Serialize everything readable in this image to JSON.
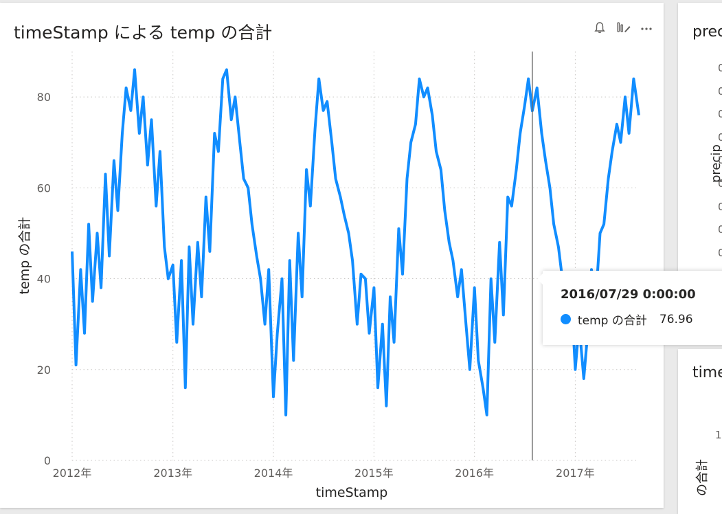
{
  "visual": {
    "title": "timeStamp による temp の合計",
    "icons": [
      "bell-icon",
      "focus-mode-icon",
      "more-options-icon"
    ]
  },
  "tooltip": {
    "title": "2016/07/29 0:00:00",
    "series_label": "temp の合計",
    "value": "76.96"
  },
  "right_panel": {
    "top_title": "preci",
    "top_axis_label": "precip",
    "top_ticks": [
      "0",
      "0",
      "0",
      "0",
      "0",
      "0",
      "0",
      "0",
      "0"
    ],
    "bottom_title": "time",
    "bottom_tick": "1",
    "bottom_axis_label": "の合計"
  },
  "colors": {
    "series": "#118dff",
    "crosshair": "#666666",
    "grid": "#c8c6c4"
  },
  "chart_data": {
    "type": "line",
    "title": "timeStamp による temp の合計",
    "xlabel": "timeStamp",
    "ylabel": "temp の合計",
    "x_range": [
      "2012-01-01",
      "2017-08-20"
    ],
    "ylim": [
      0,
      90
    ],
    "y_ticks": [
      0,
      20,
      40,
      60,
      80
    ],
    "x_ticks": [
      "2012年",
      "2013年",
      "2014年",
      "2015年",
      "2016年",
      "2017年"
    ],
    "grid": true,
    "highlight_x": "2016-07-29",
    "series": [
      {
        "name": "temp の合計",
        "color": "#118dff",
        "x": [
          "2012-01-01",
          "2012-01-15",
          "2012-02-01",
          "2012-02-15",
          "2012-03-01",
          "2012-03-15",
          "2012-04-01",
          "2012-04-15",
          "2012-05-01",
          "2012-05-15",
          "2012-06-01",
          "2012-06-15",
          "2012-07-01",
          "2012-07-15",
          "2012-08-01",
          "2012-08-15",
          "2012-09-01",
          "2012-09-15",
          "2012-10-01",
          "2012-10-15",
          "2012-11-01",
          "2012-11-15",
          "2012-12-01",
          "2012-12-15",
          "2013-01-01",
          "2013-01-15",
          "2013-02-01",
          "2013-02-15",
          "2013-03-01",
          "2013-03-15",
          "2013-04-01",
          "2013-04-15",
          "2013-05-01",
          "2013-05-15",
          "2013-06-01",
          "2013-06-15",
          "2013-07-01",
          "2013-07-15",
          "2013-08-01",
          "2013-08-15",
          "2013-09-01",
          "2013-09-15",
          "2013-10-01",
          "2013-10-15",
          "2013-11-01",
          "2013-11-15",
          "2013-12-01",
          "2013-12-15",
          "2014-01-01",
          "2014-01-15",
          "2014-02-01",
          "2014-02-15",
          "2014-03-01",
          "2014-03-15",
          "2014-04-01",
          "2014-04-15",
          "2014-05-01",
          "2014-05-15",
          "2014-06-01",
          "2014-06-15",
          "2014-07-01",
          "2014-07-15",
          "2014-08-01",
          "2014-08-15",
          "2014-09-01",
          "2014-09-15",
          "2014-10-01",
          "2014-10-15",
          "2014-11-01",
          "2014-11-15",
          "2014-12-01",
          "2014-12-15",
          "2015-01-01",
          "2015-01-15",
          "2015-02-01",
          "2015-02-15",
          "2015-03-01",
          "2015-03-15",
          "2015-04-01",
          "2015-04-15",
          "2015-05-01",
          "2015-05-15",
          "2015-06-01",
          "2015-06-15",
          "2015-07-01",
          "2015-07-15",
          "2015-08-01",
          "2015-08-15",
          "2015-09-01",
          "2015-09-15",
          "2015-10-01",
          "2015-10-15",
          "2015-11-01",
          "2015-11-15",
          "2015-12-01",
          "2015-12-15",
          "2016-01-01",
          "2016-01-15",
          "2016-02-01",
          "2016-02-15",
          "2016-03-01",
          "2016-03-15",
          "2016-04-01",
          "2016-04-15",
          "2016-05-01",
          "2016-05-15",
          "2016-06-01",
          "2016-06-15",
          "2016-07-01",
          "2016-07-15",
          "2016-07-29",
          "2016-08-15",
          "2016-09-01",
          "2016-09-15",
          "2016-10-01",
          "2016-10-15",
          "2016-11-01",
          "2016-11-15",
          "2016-12-01",
          "2016-12-15",
          "2017-01-01",
          "2017-01-15",
          "2017-02-01",
          "2017-02-15",
          "2017-03-01",
          "2017-03-15",
          "2017-04-01",
          "2017-04-15",
          "2017-05-01",
          "2017-05-15",
          "2017-06-01",
          "2017-06-15",
          "2017-07-01",
          "2017-07-15",
          "2017-08-01",
          "2017-08-20"
        ],
        "y": [
          46,
          21,
          42,
          28,
          52,
          35,
          50,
          38,
          63,
          45,
          66,
          55,
          72,
          82,
          77,
          86,
          72,
          80,
          65,
          75,
          56,
          68,
          47,
          40,
          43,
          26,
          44,
          16,
          47,
          30,
          48,
          36,
          58,
          46,
          72,
          68,
          84,
          86,
          75,
          80,
          70,
          62,
          60,
          52,
          45,
          40,
          30,
          42,
          14,
          28,
          40,
          10,
          44,
          22,
          50,
          36,
          64,
          56,
          73,
          84,
          77,
          79,
          70,
          62,
          58,
          54,
          50,
          44,
          30,
          41,
          40,
          28,
          38,
          16,
          30,
          12,
          36,
          26,
          51,
          41,
          62,
          70,
          74,
          84,
          80,
          82,
          76,
          68,
          64,
          55,
          48,
          44,
          36,
          42,
          30,
          20,
          38,
          22,
          16,
          10,
          40,
          26,
          48,
          32,
          58,
          56,
          64,
          72,
          78,
          84,
          76.96,
          82,
          72,
          66,
          60,
          52,
          47,
          40,
          34,
          40,
          20,
          30,
          18,
          28,
          42,
          34,
          50,
          52,
          62,
          68,
          74,
          70,
          80,
          72,
          84,
          76
        ]
      }
    ]
  }
}
